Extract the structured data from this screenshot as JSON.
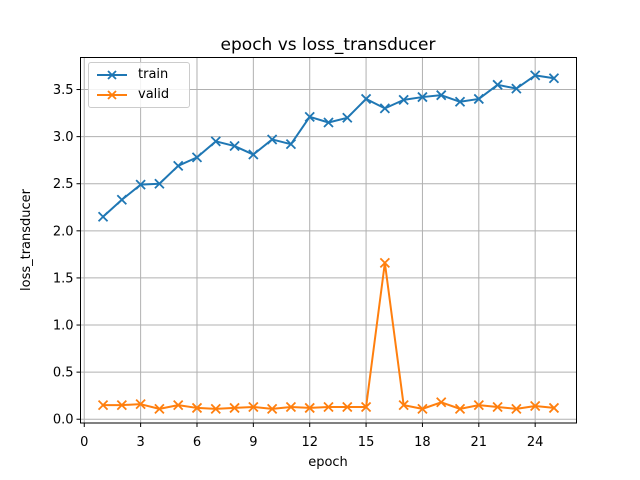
{
  "figure": {
    "title": "epoch vs loss_transducer",
    "background_color": "#ffffff"
  },
  "chart_data": {
    "type": "line",
    "title": "epoch vs loss_transducer",
    "xlabel": "epoch",
    "ylabel": "loss_transducer",
    "grid": true,
    "legend_position": "upper left",
    "x": [
      1,
      2,
      3,
      4,
      5,
      6,
      7,
      8,
      9,
      10,
      11,
      12,
      13,
      14,
      15,
      16,
      17,
      18,
      19,
      20,
      21,
      22,
      23,
      24,
      25
    ],
    "series": [
      {
        "name": "train",
        "color": "#1f77b4",
        "marker": "x",
        "values": [
          2.15,
          2.33,
          2.49,
          2.5,
          2.69,
          2.78,
          2.95,
          2.9,
          2.81,
          2.97,
          2.92,
          3.21,
          3.15,
          3.2,
          3.4,
          3.3,
          3.39,
          3.42,
          3.44,
          3.37,
          3.4,
          3.55,
          3.51,
          3.65,
          3.62
        ]
      },
      {
        "name": "valid",
        "color": "#ff7f0e",
        "marker": "x",
        "values": [
          0.15,
          0.15,
          0.16,
          0.11,
          0.15,
          0.12,
          0.11,
          0.12,
          0.13,
          0.11,
          0.13,
          0.12,
          0.13,
          0.13,
          0.13,
          1.66,
          0.15,
          0.11,
          0.18,
          0.11,
          0.15,
          0.13,
          0.11,
          0.14,
          0.12
        ]
      }
    ],
    "xlim": [
      -0.2,
      26.2
    ],
    "ylim": [
      -0.04,
      3.84
    ],
    "x_ticks": [
      0,
      3,
      6,
      9,
      12,
      15,
      18,
      21,
      24
    ],
    "y_tick_values": [
      0,
      0.5,
      1,
      1.5,
      2,
      2.5,
      3,
      3.5
    ],
    "y_tick_labels": [
      "0.0",
      "0.5",
      "1.0",
      "1.5",
      "2.0",
      "2.5",
      "3.0",
      "3.5"
    ],
    "colors": {
      "grid": "#b0b0b0",
      "spine": "#000000",
      "tick": "#000000",
      "legend_border": "#cccccc"
    }
  }
}
